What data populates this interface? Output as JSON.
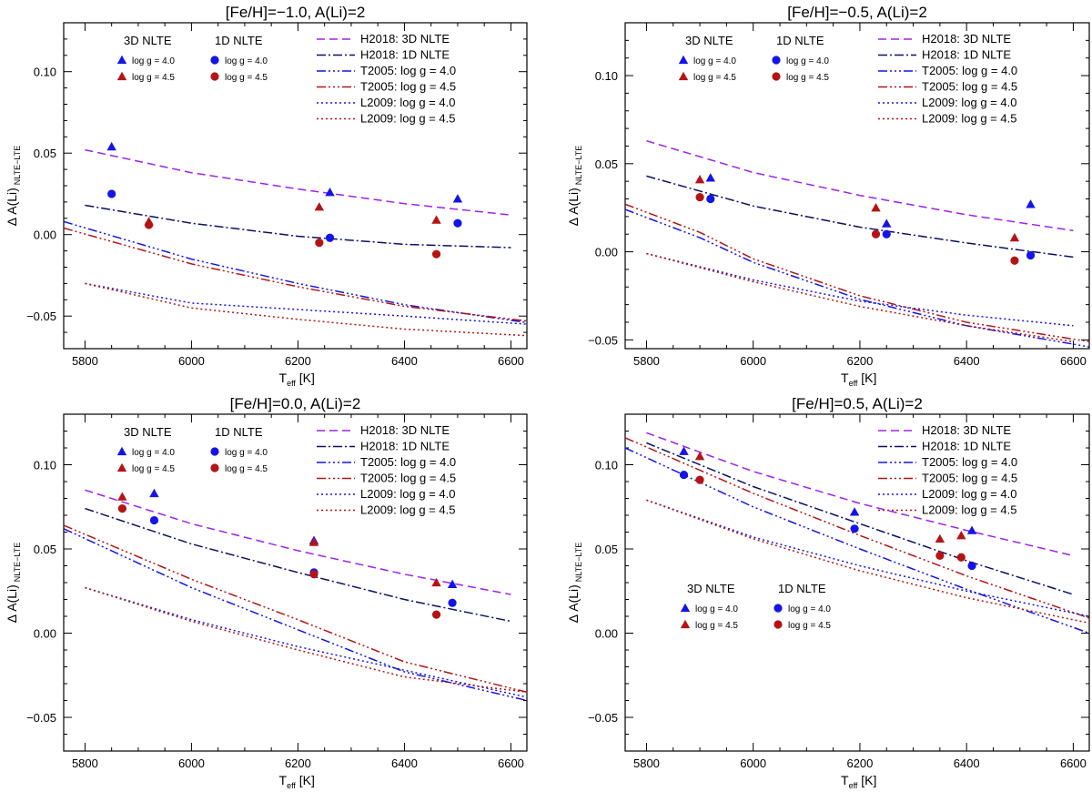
{
  "colors": {
    "purple": "#a020f0",
    "navy": "#0a1064",
    "blue": "#1414e6",
    "red": "#b41414",
    "axis": "#000000"
  },
  "icons": {
    "triangle": "triangle-marker-icon",
    "circle": "circle-marker-icon"
  },
  "chart_data": [
    {
      "type": "line",
      "title": "[Fe/H]=−1.0, A(Li)=2",
      "xlabel_main": "T",
      "xlabel_sub": "eff",
      "xlabel_unit": " [K]",
      "ylabel_main": "Δ A(Li)",
      "ylabel_sub": "NLTE−LTE",
      "xlim": [
        5760,
        6630
      ],
      "ylim": [
        -0.07,
        0.13
      ],
      "xticks": [
        5800,
        6000,
        6200,
        6400,
        6600
      ],
      "yticks": [
        -0.05,
        0.0,
        0.05,
        0.1
      ],
      "xtick_labels": [
        "5800",
        "6000",
        "6200",
        "6400",
        "6600"
      ],
      "ytick_labels": [
        "−0.05",
        "0.00",
        "0.05",
        "0.10"
      ],
      "curves": [
        {
          "name": "H2018: 3D NLTE",
          "color": "purple",
          "dash": "9,5",
          "x": [
            5800,
            6000,
            6200,
            6400,
            6600
          ],
          "y": [
            0.052,
            0.038,
            0.028,
            0.019,
            0.012
          ]
        },
        {
          "name": "H2018: 1D NLTE",
          "color": "navy",
          "dash": "10,3,2,3",
          "x": [
            5800,
            6000,
            6200,
            6400,
            6600
          ],
          "y": [
            0.018,
            0.007,
            -0.001,
            -0.006,
            -0.008
          ]
        },
        {
          "name": "T2005: log g = 4.0",
          "color": "blue",
          "dash": "10,3,2,3,2,3,2,3",
          "x": [
            5760,
            6000,
            6200,
            6400,
            6630
          ],
          "y": [
            0.008,
            -0.015,
            -0.03,
            -0.043,
            -0.054
          ]
        },
        {
          "name": "T2005: log g = 4.5",
          "color": "red",
          "dash": "10,3,2,3,2,3,2,3",
          "x": [
            5760,
            6000,
            6200,
            6400,
            6630
          ],
          "y": [
            0.004,
            -0.018,
            -0.032,
            -0.044,
            -0.053
          ]
        },
        {
          "name": "L2009: log g = 4.0",
          "color": "blue",
          "dash": "2,3",
          "x": [
            5800,
            6000,
            6200,
            6400,
            6630
          ],
          "y": [
            -0.03,
            -0.042,
            -0.046,
            -0.05,
            -0.055
          ]
        },
        {
          "name": "L2009: log g = 4.5",
          "color": "red",
          "dash": "2,3",
          "x": [
            5800,
            6000,
            6200,
            6400,
            6630
          ],
          "y": [
            -0.03,
            -0.045,
            -0.052,
            -0.058,
            -0.062
          ]
        }
      ],
      "points": [
        {
          "label": "3D NLTE, log g = 4.0",
          "marker": "triangle",
          "color": "blue",
          "x": [
            5850,
            6260,
            6500
          ],
          "y": [
            0.054,
            0.026,
            0.022
          ]
        },
        {
          "label": "3D NLTE, log g = 4.5",
          "marker": "triangle",
          "color": "red",
          "x": [
            5920,
            6240,
            6460
          ],
          "y": [
            0.008,
            0.017,
            0.009
          ]
        },
        {
          "label": "1D NLTE, log g = 4.0",
          "marker": "circle",
          "color": "blue",
          "x": [
            5850,
            6260,
            6500
          ],
          "y": [
            0.025,
            -0.002,
            0.007
          ]
        },
        {
          "label": "1D NLTE, log g = 4.5",
          "marker": "circle",
          "color": "red",
          "x": [
            5920,
            6240,
            6460
          ],
          "y": [
            0.006,
            -0.005,
            -0.012
          ]
        }
      ],
      "marker_legend": {
        "placement": "top-left",
        "headers": [
          "3D NLTE",
          "1D NLTE"
        ],
        "entries": [
          {
            "marker": "triangle",
            "color": "blue",
            "label": "log g = 4.0"
          },
          {
            "marker": "triangle",
            "color": "red",
            "label": "log g = 4.5"
          },
          {
            "marker": "circle",
            "color": "blue",
            "label": "log g = 4.0"
          },
          {
            "marker": "circle",
            "color": "red",
            "label": "log g = 4.5"
          }
        ]
      },
      "line_legend": {
        "placement": "top-right"
      }
    },
    {
      "type": "line",
      "title": "[Fe/H]=−0.5, A(Li)=2",
      "xlabel_main": "T",
      "xlabel_sub": "eff",
      "xlabel_unit": " [K]",
      "ylabel_main": "Δ A(Li)",
      "ylabel_sub": "NLTE−LTE",
      "xlim": [
        5760,
        6630
      ],
      "ylim": [
        -0.055,
        0.13
      ],
      "xticks": [
        5800,
        6000,
        6200,
        6400,
        6600
      ],
      "yticks": [
        -0.05,
        0.0,
        0.05,
        0.1
      ],
      "xtick_labels": [
        "5800",
        "6000",
        "6200",
        "6400",
        "6600"
      ],
      "ytick_labels": [
        "−0.05",
        "0.00",
        "0.05",
        "0.10"
      ],
      "curves": [
        {
          "name": "H2018: 3D NLTE",
          "color": "purple",
          "dash": "9,5",
          "x": [
            5800,
            6000,
            6200,
            6400,
            6600
          ],
          "y": [
            0.063,
            0.045,
            0.032,
            0.021,
            0.012
          ]
        },
        {
          "name": "H2018: 1D NLTE",
          "color": "navy",
          "dash": "10,3,2,3",
          "x": [
            5800,
            6000,
            6200,
            6400,
            6600
          ],
          "y": [
            0.043,
            0.026,
            0.014,
            0.005,
            -0.003
          ]
        },
        {
          "name": "T2005: log g = 4.0",
          "color": "blue",
          "dash": "10,3,2,3,2,3,2,3",
          "x": [
            5760,
            5900,
            6000,
            6200,
            6400,
            6630
          ],
          "y": [
            0.024,
            0.008,
            -0.006,
            -0.027,
            -0.042,
            -0.054
          ]
        },
        {
          "name": "T2005: log g = 4.5",
          "color": "red",
          "dash": "10,3,2,3,2,3,2,3",
          "x": [
            5760,
            5900,
            6000,
            6200,
            6400,
            6630
          ],
          "y": [
            0.027,
            0.011,
            -0.004,
            -0.025,
            -0.04,
            -0.051
          ]
        },
        {
          "name": "L2009: log g = 4.0",
          "color": "blue",
          "dash": "2,3",
          "x": [
            5800,
            6000,
            6200,
            6400,
            6600
          ],
          "y": [
            -0.001,
            -0.016,
            -0.028,
            -0.036,
            -0.042
          ]
        },
        {
          "name": "L2009: log g = 4.5",
          "color": "red",
          "dash": "2,3",
          "x": [
            5800,
            6000,
            6200,
            6400,
            6600
          ],
          "y": [
            -0.001,
            -0.017,
            -0.031,
            -0.042,
            -0.051
          ]
        }
      ],
      "points": [
        {
          "label": "3D NLTE, log g = 4.0",
          "marker": "triangle",
          "color": "blue",
          "x": [
            5920,
            6250,
            6520
          ],
          "y": [
            0.042,
            0.016,
            0.027
          ]
        },
        {
          "label": "3D NLTE, log g = 4.5",
          "marker": "triangle",
          "color": "red",
          "x": [
            5900,
            6230,
            6490
          ],
          "y": [
            0.041,
            0.025,
            0.008
          ]
        },
        {
          "label": "1D NLTE, log g = 4.0",
          "marker": "circle",
          "color": "blue",
          "x": [
            5920,
            6250,
            6520
          ],
          "y": [
            0.03,
            0.01,
            -0.002
          ]
        },
        {
          "label": "1D NLTE, log g = 4.5",
          "marker": "circle",
          "color": "red",
          "x": [
            5900,
            6230,
            6490
          ],
          "y": [
            0.031,
            0.01,
            -0.005
          ]
        }
      ],
      "marker_legend": {
        "placement": "top-left",
        "headers": [
          "3D NLTE",
          "1D NLTE"
        ],
        "entries": [
          {
            "marker": "triangle",
            "color": "blue",
            "label": "log g = 4.0"
          },
          {
            "marker": "triangle",
            "color": "red",
            "label": "log g = 4.5"
          },
          {
            "marker": "circle",
            "color": "blue",
            "label": "log g = 4.0"
          },
          {
            "marker": "circle",
            "color": "red",
            "label": "log g = 4.5"
          }
        ]
      },
      "line_legend": {
        "placement": "top-right"
      }
    },
    {
      "type": "line",
      "title": "[Fe/H]=0.0, A(Li)=2",
      "xlabel_main": "T",
      "xlabel_sub": "eff",
      "xlabel_unit": " [K]",
      "ylabel_main": "Δ A(Li)",
      "ylabel_sub": "NLTE−LTE",
      "xlim": [
        5760,
        6630
      ],
      "ylim": [
        -0.07,
        0.13
      ],
      "xticks": [
        5800,
        6000,
        6200,
        6400,
        6600
      ],
      "yticks": [
        -0.05,
        0.0,
        0.05,
        0.1
      ],
      "xtick_labels": [
        "5800",
        "6000",
        "6200",
        "6400",
        "6600"
      ],
      "ytick_labels": [
        "−0.05",
        "0.00",
        "0.05",
        "0.10"
      ],
      "curves": [
        {
          "name": "H2018: 3D NLTE",
          "color": "purple",
          "dash": "9,5",
          "x": [
            5800,
            6000,
            6200,
            6400,
            6600
          ],
          "y": [
            0.085,
            0.065,
            0.049,
            0.035,
            0.023
          ]
        },
        {
          "name": "H2018: 1D NLTE",
          "color": "navy",
          "dash": "10,3,2,3",
          "x": [
            5800,
            6000,
            6200,
            6400,
            6600
          ],
          "y": [
            0.074,
            0.053,
            0.036,
            0.02,
            0.007
          ]
        },
        {
          "name": "T2005: log g = 4.0",
          "color": "blue",
          "dash": "10,3,2,3,2,3,2,3",
          "x": [
            5760,
            6000,
            6200,
            6400,
            6630
          ],
          "y": [
            0.062,
            0.027,
            0.002,
            -0.023,
            -0.04
          ]
        },
        {
          "name": "T2005: log g = 4.5",
          "color": "red",
          "dash": "10,3,2,3,2,3,2,3",
          "x": [
            5760,
            6000,
            6200,
            6400,
            6630
          ],
          "y": [
            0.064,
            0.032,
            0.008,
            -0.017,
            -0.035
          ]
        },
        {
          "name": "L2009: log g = 4.0",
          "color": "blue",
          "dash": "2,3",
          "x": [
            5800,
            6000,
            6200,
            6400,
            6630
          ],
          "y": [
            0.027,
            0.008,
            -0.008,
            -0.022,
            -0.038
          ]
        },
        {
          "name": "L2009: log g = 4.5",
          "color": "red",
          "dash": "2,3",
          "x": [
            5800,
            6000,
            6200,
            6400,
            6630
          ],
          "y": [
            0.027,
            0.007,
            -0.01,
            -0.026,
            -0.035
          ]
        }
      ],
      "points": [
        {
          "label": "3D NLTE, log g = 4.0",
          "marker": "triangle",
          "color": "blue",
          "x": [
            5930,
            6230,
            6490
          ],
          "y": [
            0.083,
            0.055,
            0.029
          ]
        },
        {
          "label": "3D NLTE, log g = 4.5",
          "marker": "triangle",
          "color": "red",
          "x": [
            5870,
            6230,
            6460
          ],
          "y": [
            0.081,
            0.054,
            0.03
          ]
        },
        {
          "label": "1D NLTE, log g = 4.0",
          "marker": "circle",
          "color": "blue",
          "x": [
            5930,
            6230,
            6490
          ],
          "y": [
            0.067,
            0.036,
            0.018
          ]
        },
        {
          "label": "1D NLTE, log g = 4.5",
          "marker": "circle",
          "color": "red",
          "x": [
            5870,
            6230,
            6460
          ],
          "y": [
            0.074,
            0.035,
            0.011
          ]
        }
      ],
      "marker_legend": {
        "placement": "top-left",
        "headers": [
          "3D NLTE",
          "1D NLTE"
        ],
        "entries": [
          {
            "marker": "triangle",
            "color": "blue",
            "label": "log g = 4.0"
          },
          {
            "marker": "triangle",
            "color": "red",
            "label": "log g = 4.5"
          },
          {
            "marker": "circle",
            "color": "blue",
            "label": "log g = 4.0"
          },
          {
            "marker": "circle",
            "color": "red",
            "label": "log g = 4.5"
          }
        ]
      },
      "line_legend": {
        "placement": "top-right"
      }
    },
    {
      "type": "line",
      "title": "[Fe/H]=0.5, A(Li)=2",
      "xlabel_main": "T",
      "xlabel_sub": "eff",
      "xlabel_unit": " [K]",
      "ylabel_main": "Δ A(Li)",
      "ylabel_sub": "NLTE−LTE",
      "xlim": [
        5760,
        6630
      ],
      "ylim": [
        -0.07,
        0.13
      ],
      "xticks": [
        5800,
        6000,
        6200,
        6400,
        6600
      ],
      "yticks": [
        -0.05,
        0.0,
        0.05,
        0.1
      ],
      "xtick_labels": [
        "5800",
        "6000",
        "6200",
        "6400",
        "6600"
      ],
      "ytick_labels": [
        "−0.05",
        "0.00",
        "0.05",
        "0.10"
      ],
      "curves": [
        {
          "name": "H2018: 3D NLTE",
          "color": "purple",
          "dash": "9,5",
          "x": [
            5800,
            6000,
            6200,
            6400,
            6600
          ],
          "y": [
            0.119,
            0.096,
            0.077,
            0.061,
            0.046
          ]
        },
        {
          "name": "H2018: 1D NLTE",
          "color": "navy",
          "dash": "10,3,2,3",
          "x": [
            5800,
            6000,
            6200,
            6400,
            6600
          ],
          "y": [
            0.113,
            0.087,
            0.065,
            0.043,
            0.023
          ]
        },
        {
          "name": "T2005: log g = 4.0",
          "color": "blue",
          "dash": "10,3,2,3,2,3,2,3",
          "x": [
            5760,
            6000,
            6200,
            6400,
            6630
          ],
          "y": [
            0.11,
            0.075,
            0.05,
            0.026,
            0.0
          ]
        },
        {
          "name": "T2005: log g = 4.5",
          "color": "red",
          "dash": "10,3,2,3,2,3,2,3",
          "x": [
            5760,
            6000,
            6200,
            6400,
            6630
          ],
          "y": [
            0.116,
            0.083,
            0.058,
            0.034,
            0.009
          ]
        },
        {
          "name": "L2009: log g = 4.0",
          "color": "blue",
          "dash": "2,3",
          "x": [
            5800,
            6000,
            6200,
            6400,
            6630
          ],
          "y": [
            0.079,
            0.057,
            0.04,
            0.025,
            0.01
          ]
        },
        {
          "name": "L2009: log g = 4.5",
          "color": "red",
          "dash": "2,3",
          "x": [
            5800,
            6000,
            6200,
            6400,
            6630
          ],
          "y": [
            0.079,
            0.056,
            0.037,
            0.021,
            0.006
          ]
        }
      ],
      "points": [
        {
          "label": "3D NLTE, log g = 4.0",
          "marker": "triangle",
          "color": "blue",
          "x": [
            5870,
            6190,
            6410
          ],
          "y": [
            0.108,
            0.072,
            0.061
          ]
        },
        {
          "label": "3D NLTE, log g = 4.5",
          "marker": "triangle",
          "color": "red",
          "x": [
            5900,
            6350,
            6390
          ],
          "y": [
            0.105,
            0.056,
            0.058
          ]
        },
        {
          "label": "1D NLTE, log g = 4.0",
          "marker": "circle",
          "color": "blue",
          "x": [
            5870,
            6190,
            6410
          ],
          "y": [
            0.094,
            0.062,
            0.04
          ]
        },
        {
          "label": "1D NLTE, log g = 4.5",
          "marker": "circle",
          "color": "red",
          "x": [
            5900,
            6350,
            6390
          ],
          "y": [
            0.091,
            0.046,
            0.045
          ]
        }
      ],
      "marker_legend": {
        "placement": "bottom-left",
        "headers": [
          "3D NLTE",
          "1D NLTE"
        ],
        "entries": [
          {
            "marker": "triangle",
            "color": "blue",
            "label": "log g = 4.0"
          },
          {
            "marker": "triangle",
            "color": "red",
            "label": "log g = 4.5"
          },
          {
            "marker": "circle",
            "color": "blue",
            "label": "log g = 4.0"
          },
          {
            "marker": "circle",
            "color": "red",
            "label": "log g = 4.5"
          }
        ]
      },
      "line_legend": {
        "placement": "top-right"
      }
    }
  ]
}
